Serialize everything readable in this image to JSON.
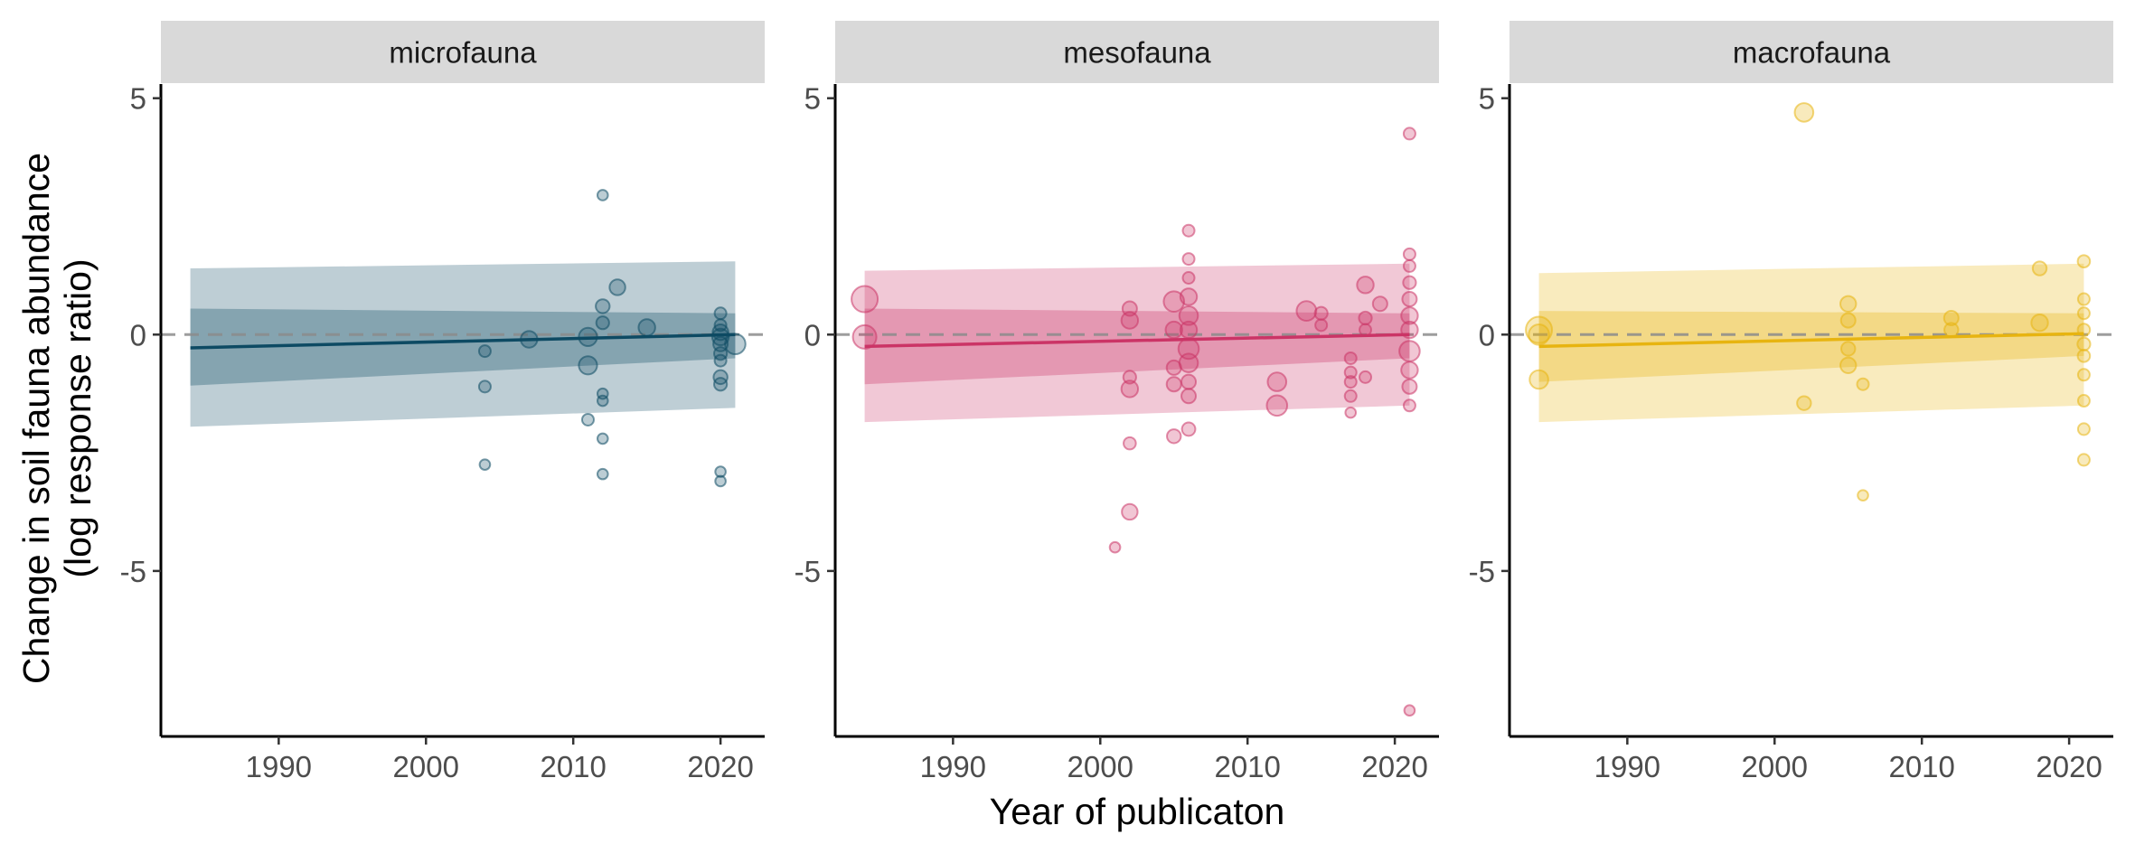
{
  "chart_data": {
    "type": "scatter",
    "layout": "faceted",
    "xlabel": "Year of publicaton",
    "ylabel_line1": "Change in soil fauna abundance",
    "ylabel_line2": "(log response ratio)",
    "xlim": [
      1982,
      2023
    ],
    "ylim": [
      -8.5,
      5.3
    ],
    "x_ticks": [
      1990,
      2000,
      2010,
      2020
    ],
    "y_ticks": [
      5,
      0,
      -5
    ],
    "reference_line_y": 0,
    "grid": false,
    "legend": "none",
    "panels": [
      {
        "name": "microfauna",
        "color": "#0d4a63",
        "trend": {
          "x": [
            1984,
            2021
          ],
          "y": [
            -0.28,
            0.0
          ]
        },
        "ci_inner": {
          "x": [
            1984,
            2021
          ],
          "upper": [
            0.55,
            0.45
          ],
          "lower": [
            -1.08,
            -0.5
          ]
        },
        "ci_outer": {
          "x": [
            1984,
            2021
          ],
          "upper": [
            1.4,
            1.55
          ],
          "lower": [
            -1.95,
            -1.55
          ]
        },
        "points": [
          {
            "x": 2004,
            "y": -0.35,
            "s": 1
          },
          {
            "x": 2004,
            "y": -1.1,
            "s": 1
          },
          {
            "x": 2004,
            "y": -2.75,
            "s": 0.8
          },
          {
            "x": 2007,
            "y": -0.1,
            "s": 2
          },
          {
            "x": 2011,
            "y": -0.05,
            "s": 2.4
          },
          {
            "x": 2011,
            "y": -0.65,
            "s": 2.4
          },
          {
            "x": 2011,
            "y": -1.8,
            "s": 1
          },
          {
            "x": 2012,
            "y": 2.95,
            "s": 0.8
          },
          {
            "x": 2012,
            "y": 0.6,
            "s": 1.4
          },
          {
            "x": 2012,
            "y": 0.25,
            "s": 1.2
          },
          {
            "x": 2012,
            "y": -1.25,
            "s": 0.8
          },
          {
            "x": 2012,
            "y": -1.4,
            "s": 0.8
          },
          {
            "x": 2012,
            "y": -2.2,
            "s": 0.8
          },
          {
            "x": 2012,
            "y": -2.95,
            "s": 0.8
          },
          {
            "x": 2013,
            "y": 1.0,
            "s": 1.8
          },
          {
            "x": 2015,
            "y": 0.15,
            "s": 2
          },
          {
            "x": 2020,
            "y": 0.45,
            "s": 1
          },
          {
            "x": 2020,
            "y": 0.2,
            "s": 1
          },
          {
            "x": 2020,
            "y": 0.05,
            "s": 1.8
          },
          {
            "x": 2020,
            "y": -0.05,
            "s": 2
          },
          {
            "x": 2020,
            "y": -0.2,
            "s": 1.5
          },
          {
            "x": 2020,
            "y": -0.4,
            "s": 1.2
          },
          {
            "x": 2020,
            "y": -0.55,
            "s": 1
          },
          {
            "x": 2020,
            "y": -0.9,
            "s": 1.4
          },
          {
            "x": 2020,
            "y": -1.05,
            "s": 1.2
          },
          {
            "x": 2020,
            "y": -2.9,
            "s": 0.8
          },
          {
            "x": 2020,
            "y": -3.1,
            "s": 0.8
          },
          {
            "x": 2021,
            "y": -0.2,
            "s": 3
          }
        ]
      },
      {
        "name": "mesofauna",
        "color": "#cb3466",
        "trend": {
          "x": [
            1984,
            2021
          ],
          "y": [
            -0.25,
            0.0
          ]
        },
        "ci_inner": {
          "x": [
            1984,
            2021
          ],
          "upper": [
            0.55,
            0.45
          ],
          "lower": [
            -1.05,
            -0.5
          ]
        },
        "ci_outer": {
          "x": [
            1984,
            2021
          ],
          "upper": [
            1.35,
            1.5
          ],
          "lower": [
            -1.85,
            -1.5
          ]
        },
        "points": [
          {
            "x": 1984,
            "y": 0.75,
            "s": 5
          },
          {
            "x": 1984,
            "y": -0.05,
            "s": 4
          },
          {
            "x": 2001,
            "y": -4.5,
            "s": 0.8
          },
          {
            "x": 2002,
            "y": 0.55,
            "s": 1.5
          },
          {
            "x": 2002,
            "y": 0.3,
            "s": 2
          },
          {
            "x": 2002,
            "y": -0.9,
            "s": 1.2
          },
          {
            "x": 2002,
            "y": -1.15,
            "s": 2
          },
          {
            "x": 2002,
            "y": -2.3,
            "s": 1.1
          },
          {
            "x": 2002,
            "y": -3.75,
            "s": 1.8
          },
          {
            "x": 2005,
            "y": 0.7,
            "s": 3
          },
          {
            "x": 2005,
            "y": 0.1,
            "s": 2
          },
          {
            "x": 2005,
            "y": -0.7,
            "s": 1.5
          },
          {
            "x": 2005,
            "y": -1.05,
            "s": 1.5
          },
          {
            "x": 2005,
            "y": -2.15,
            "s": 1.4
          },
          {
            "x": 2006,
            "y": 2.2,
            "s": 1
          },
          {
            "x": 2006,
            "y": 1.6,
            "s": 1
          },
          {
            "x": 2006,
            "y": 1.2,
            "s": 1
          },
          {
            "x": 2006,
            "y": 0.8,
            "s": 2
          },
          {
            "x": 2006,
            "y": 0.4,
            "s": 2.5
          },
          {
            "x": 2006,
            "y": 0.1,
            "s": 2
          },
          {
            "x": 2006,
            "y": -0.3,
            "s": 3
          },
          {
            "x": 2006,
            "y": -0.6,
            "s": 2.5
          },
          {
            "x": 2006,
            "y": -1.0,
            "s": 1.5
          },
          {
            "x": 2006,
            "y": -1.3,
            "s": 1.5
          },
          {
            "x": 2006,
            "y": -2.0,
            "s": 1.3
          },
          {
            "x": 2012,
            "y": -1.0,
            "s": 2.5
          },
          {
            "x": 2012,
            "y": -1.5,
            "s": 3
          },
          {
            "x": 2014,
            "y": 0.5,
            "s": 2.8
          },
          {
            "x": 2015,
            "y": 0.45,
            "s": 1.2
          },
          {
            "x": 2015,
            "y": 0.2,
            "s": 1
          },
          {
            "x": 2017,
            "y": -0.5,
            "s": 1
          },
          {
            "x": 2017,
            "y": -0.8,
            "s": 1
          },
          {
            "x": 2017,
            "y": -1.0,
            "s": 1
          },
          {
            "x": 2017,
            "y": -1.3,
            "s": 1
          },
          {
            "x": 2017,
            "y": -1.65,
            "s": 0.8
          },
          {
            "x": 2018,
            "y": 1.05,
            "s": 2
          },
          {
            "x": 2018,
            "y": 0.35,
            "s": 1.2
          },
          {
            "x": 2018,
            "y": 0.1,
            "s": 1
          },
          {
            "x": 2018,
            "y": -0.9,
            "s": 1
          },
          {
            "x": 2019,
            "y": 0.65,
            "s": 1.5
          },
          {
            "x": 2021,
            "y": 4.25,
            "s": 1
          },
          {
            "x": 2021,
            "y": 1.7,
            "s": 1
          },
          {
            "x": 2021,
            "y": 1.45,
            "s": 1
          },
          {
            "x": 2021,
            "y": 1.1,
            "s": 1.2
          },
          {
            "x": 2021,
            "y": 0.75,
            "s": 1.5
          },
          {
            "x": 2021,
            "y": 0.4,
            "s": 2
          },
          {
            "x": 2021,
            "y": 0.1,
            "s": 2
          },
          {
            "x": 2021,
            "y": -0.35,
            "s": 3
          },
          {
            "x": 2021,
            "y": -0.75,
            "s": 2
          },
          {
            "x": 2021,
            "y": -1.1,
            "s": 1.5
          },
          {
            "x": 2021,
            "y": -1.5,
            "s": 1
          },
          {
            "x": 2021,
            "y": -7.95,
            "s": 0.8
          }
        ]
      },
      {
        "name": "macrofauna",
        "color": "#e7b410",
        "trend": {
          "x": [
            1984,
            2021
          ],
          "y": [
            -0.25,
            0.02
          ]
        },
        "ci_inner": {
          "x": [
            1984,
            2021
          ],
          "upper": [
            0.5,
            0.45
          ],
          "lower": [
            -1.0,
            -0.45
          ]
        },
        "ci_outer": {
          "x": [
            1984,
            2021
          ],
          "upper": [
            1.3,
            1.5
          ],
          "lower": [
            -1.85,
            -1.5
          ]
        },
        "points": [
          {
            "x": 1984,
            "y": 0.1,
            "s": 5
          },
          {
            "x": 1984,
            "y": 0.0,
            "s": 3
          },
          {
            "x": 1984,
            "y": -0.95,
            "s": 2.5
          },
          {
            "x": 2002,
            "y": 4.7,
            "s": 2.5
          },
          {
            "x": 2002,
            "y": -1.45,
            "s": 1.4
          },
          {
            "x": 2005,
            "y": 0.65,
            "s": 1.8
          },
          {
            "x": 2005,
            "y": 0.3,
            "s": 1.5
          },
          {
            "x": 2005,
            "y": -0.3,
            "s": 1.4
          },
          {
            "x": 2005,
            "y": -0.65,
            "s": 1.8
          },
          {
            "x": 2006,
            "y": -1.05,
            "s": 1
          },
          {
            "x": 2006,
            "y": -3.4,
            "s": 0.8
          },
          {
            "x": 2012,
            "y": 0.35,
            "s": 1.5
          },
          {
            "x": 2012,
            "y": 0.1,
            "s": 1.4
          },
          {
            "x": 2018,
            "y": 1.4,
            "s": 1.4
          },
          {
            "x": 2018,
            "y": 0.25,
            "s": 2
          },
          {
            "x": 2021,
            "y": 1.55,
            "s": 1.1
          },
          {
            "x": 2021,
            "y": 0.75,
            "s": 1
          },
          {
            "x": 2021,
            "y": 0.45,
            "s": 1
          },
          {
            "x": 2021,
            "y": 0.1,
            "s": 1.1
          },
          {
            "x": 2021,
            "y": -0.2,
            "s": 1.2
          },
          {
            "x": 2021,
            "y": -0.45,
            "s": 1.1
          },
          {
            "x": 2021,
            "y": -0.85,
            "s": 1
          },
          {
            "x": 2021,
            "y": -1.4,
            "s": 1
          },
          {
            "x": 2021,
            "y": -2.0,
            "s": 1
          },
          {
            "x": 2021,
            "y": -2.65,
            "s": 1
          }
        ]
      }
    ]
  }
}
